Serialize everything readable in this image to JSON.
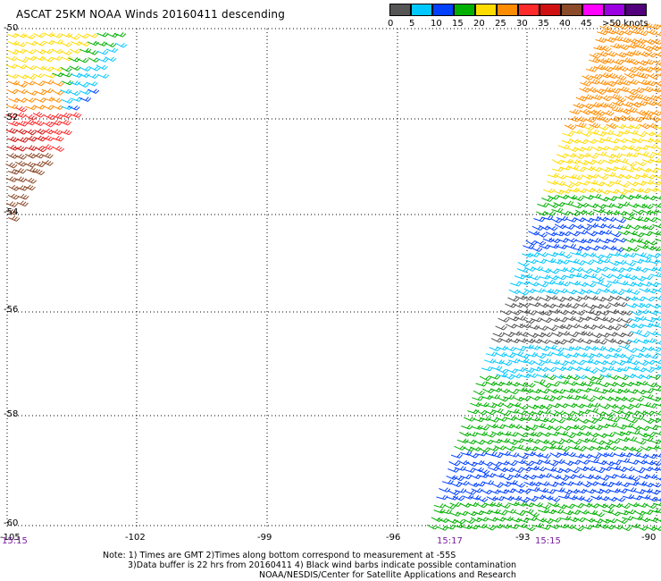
{
  "title": "ASCAT 25KM NOAA Winds 20160411 descending",
  "legend": {
    "colors": [
      "#555555",
      "#00c8ff",
      "#0040ff",
      "#00b000",
      "#ffdc00",
      "#ff8c00",
      "#ff2a2a",
      "#d01010",
      "#8b4a2a",
      "#ff00ff",
      "#9a00e0",
      "#50007a"
    ],
    "ticks": [
      "0",
      "5",
      "10",
      "15",
      "20",
      "25",
      "30",
      "35",
      "40",
      "45",
      ">50 knots"
    ]
  },
  "axes": {
    "longitudes": [
      "-105",
      "-102",
      "-99",
      "-96",
      "-93",
      "-90"
    ],
    "latitudes": [
      "-50",
      "-52",
      "-54",
      "-56",
      "-58",
      "-60"
    ],
    "times": [
      "15:15",
      "15:17",
      "15:15"
    ]
  },
  "notes": {
    "line1": "Note: 1) Times are GMT 2)Times along bottom correspond to measurement at -55S",
    "line2": "3)Data buffer is 22 hrs from 20160411 4) Black wind barbs indicate possible contamination",
    "line3": "NOAA/NESDIS/Center for Satellite Applications and Research"
  }
}
